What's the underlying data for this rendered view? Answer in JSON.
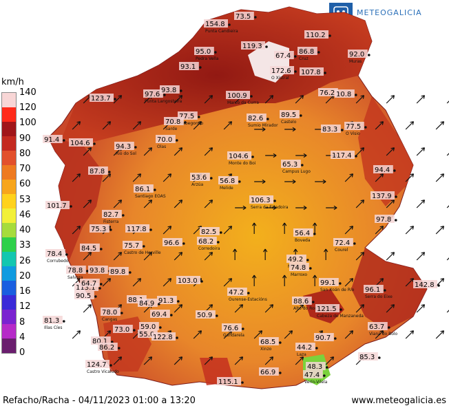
{
  "legend": {
    "unit": "km/h",
    "ticks": [
      "140",
      "120",
      "100",
      "90",
      "80",
      "70",
      "60",
      "53",
      "46",
      "40",
      "33",
      "26",
      "20",
      "16",
      "12",
      "8",
      "4",
      "0"
    ],
    "colors": [
      "#f8d6d6",
      "#ff2a1a",
      "#a0161a",
      "#c42a20",
      "#e2502c",
      "#ee7a20",
      "#f7a51c",
      "#ffd21c",
      "#f2f038",
      "#a6dc3c",
      "#2ed04a",
      "#13c7b0",
      "#0f9be0",
      "#1a5ee0",
      "#3a2ad8",
      "#7a22d0",
      "#b62ac8",
      "#6a1e6e"
    ]
  },
  "logo": {
    "name": "METEOGALICIA"
  },
  "footer": {
    "caption": "Refacho/Racha - 04/11/2023 01:00 a 13:20",
    "url": "www.meteogalicia.es"
  },
  "stations": [
    {
      "value": "154.8",
      "name": "Punta Candieira"
    },
    {
      "value": "73.5",
      "name": ""
    },
    {
      "value": "110.2",
      "name": ""
    },
    {
      "value": "119.3",
      "name": ""
    },
    {
      "value": "95.0",
      "name": "Pedra Vella"
    },
    {
      "value": "86.8",
      "name": "Cruz"
    },
    {
      "value": "92.0",
      "name": "Muras"
    },
    {
      "value": "67.4",
      "name": ""
    },
    {
      "value": "93.1",
      "name": ""
    },
    {
      "value": "172.6",
      "name": "O Xistral"
    },
    {
      "value": "107.8",
      "name": ""
    },
    {
      "value": "123.7",
      "name": ""
    },
    {
      "value": "97.6",
      "name": "Punta Langosteira"
    },
    {
      "value": "93.8",
      "name": ""
    },
    {
      "value": "100.9",
      "name": "Marco da Curra"
    },
    {
      "value": "76.2",
      "name": ""
    },
    {
      "value": "10.8",
      "name": ""
    },
    {
      "value": "77.5",
      "name": "Mabegondo"
    },
    {
      "value": "82.6",
      "name": "Sumio Mirador"
    },
    {
      "value": "89.5",
      "name": "Castelo"
    },
    {
      "value": "70.8",
      "name": "Sarde"
    },
    {
      "value": "83.3",
      "name": ""
    },
    {
      "value": "77.5",
      "name": "O Visio"
    },
    {
      "value": "91.4",
      "name": ""
    },
    {
      "value": "104.6",
      "name": ""
    },
    {
      "value": "94.3",
      "name": "Rio do Sol"
    },
    {
      "value": "70.0",
      "name": "Olas"
    },
    {
      "value": "104.6",
      "name": "Monte do Boi"
    },
    {
      "value": "117.4",
      "name": ""
    },
    {
      "value": "65.3",
      "name": "Campus Lugo"
    },
    {
      "value": "87.8",
      "name": ""
    },
    {
      "value": "94.4",
      "name": ""
    },
    {
      "value": "53.6",
      "name": "Arzúa"
    },
    {
      "value": "56.8",
      "name": "Melide"
    },
    {
      "value": "86.1",
      "name": "Santiago EOAS"
    },
    {
      "value": "106.3",
      "name": "Serra da Faladoira"
    },
    {
      "value": "137.9",
      "name": ""
    },
    {
      "value": "101.7",
      "name": ""
    },
    {
      "value": "82.7",
      "name": "Fisterra"
    },
    {
      "value": "97.8",
      "name": ""
    },
    {
      "value": "75.3",
      "name": ""
    },
    {
      "value": "117.8",
      "name": ""
    },
    {
      "value": "82.5",
      "name": "Lalín"
    },
    {
      "value": "56.4",
      "name": "Boveda"
    },
    {
      "value": "68.2",
      "name": "Corredoira"
    },
    {
      "value": "96.6",
      "name": ""
    },
    {
      "value": "72.4",
      "name": "Courel"
    },
    {
      "value": "78.4",
      "name": "Corrubedo"
    },
    {
      "value": "84.5",
      "name": ""
    },
    {
      "value": "75.7",
      "name": "Castro de Herville"
    },
    {
      "value": "49.2",
      "name": "Monforte"
    },
    {
      "value": "74.8",
      "name": "Marroxo"
    },
    {
      "value": "78.8",
      "name": "Salvora"
    },
    {
      "value": "93.8",
      "name": ""
    },
    {
      "value": "89.8",
      "name": ""
    },
    {
      "value": "103.0",
      "name": ""
    },
    {
      "value": "99.1",
      "name": "San Xoán de Río"
    },
    {
      "value": "142.8",
      "name": ""
    },
    {
      "value": "113.1",
      "name": ""
    },
    {
      "value": "64.7",
      "name": ""
    },
    {
      "value": "96.1",
      "name": "Serra do Eixe"
    },
    {
      "value": "90.5",
      "name": ""
    },
    {
      "value": "47.2",
      "name": "Ourense-Estacións"
    },
    {
      "value": "88.1",
      "name": ""
    },
    {
      "value": "91.3",
      "name": ""
    },
    {
      "value": "84.9",
      "name": ""
    },
    {
      "value": "88.6",
      "name": "Alto do Rodicio"
    },
    {
      "value": "78.0",
      "name": "Cangas"
    },
    {
      "value": "69.4",
      "name": ""
    },
    {
      "value": "121.5",
      "name": "Cabeza de Manzaneda"
    },
    {
      "value": "81.3",
      "name": "Illas Cíes"
    },
    {
      "value": "50.9",
      "name": ""
    },
    {
      "value": "73.0",
      "name": ""
    },
    {
      "value": "59.0",
      "name": ""
    },
    {
      "value": "76.6",
      "name": "Gandarela"
    },
    {
      "value": "63.7",
      "name": "Viana do Bolo"
    },
    {
      "value": "55.0",
      "name": ""
    },
    {
      "value": "80.1",
      "name": ""
    },
    {
      "value": "122.8",
      "name": ""
    },
    {
      "value": "90.7",
      "name": ""
    },
    {
      "value": "86.2",
      "name": ""
    },
    {
      "value": "68.5",
      "name": "Xinzo"
    },
    {
      "value": "44.2",
      "name": "Laza"
    },
    {
      "value": "85.3",
      "name": ""
    },
    {
      "value": "48.3",
      "name": ""
    },
    {
      "value": "47.4",
      "name": "Verín-Vilela"
    },
    {
      "value": "124.7",
      "name": "Castro Vicaludo"
    },
    {
      "value": "66.9",
      "name": ""
    },
    {
      "value": "115.1",
      "name": ""
    }
  ]
}
